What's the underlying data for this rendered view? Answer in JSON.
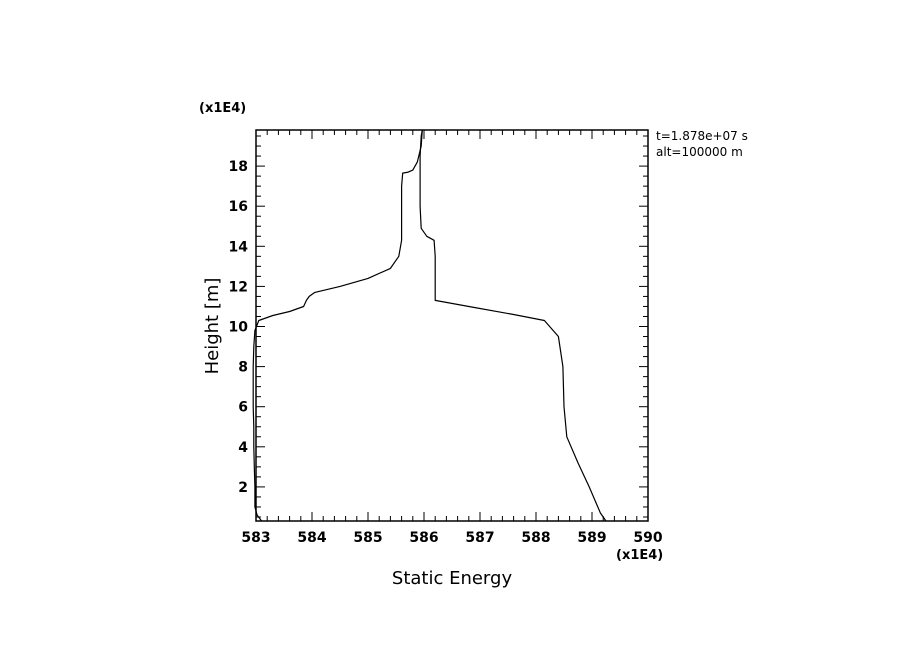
{
  "chart_data": {
    "type": "line",
    "title": "",
    "xlabel": "Static Energy",
    "ylabel": "Height [m]",
    "x_multiplier": "(x1E4)",
    "y_multiplier": "(x1E4)",
    "xlim": [
      583,
      590
    ],
    "ylim": [
      0.3,
      19.8
    ],
    "x_ticks": [
      583,
      584,
      585,
      586,
      587,
      588,
      589,
      590
    ],
    "y_ticks": [
      2,
      4,
      6,
      8,
      10,
      12,
      14,
      16,
      18
    ],
    "annotations": [
      "t=1.878e+07 s",
      "alt=100000 m"
    ],
    "grid": false,
    "series": [
      {
        "name": "",
        "points": [
          [
            583.1,
            0.3
          ],
          [
            583.02,
            0.6
          ],
          [
            582.98,
            1.0
          ],
          [
            582.98,
            2.0
          ],
          [
            582.97,
            3.0
          ],
          [
            582.96,
            4.0
          ],
          [
            582.96,
            5.0
          ],
          [
            582.95,
            6.0
          ],
          [
            582.95,
            7.0
          ],
          [
            582.95,
            8.0
          ],
          [
            582.96,
            9.0
          ],
          [
            582.98,
            9.8
          ],
          [
            583.05,
            10.3
          ],
          [
            583.3,
            10.55
          ],
          [
            583.6,
            10.75
          ],
          [
            583.85,
            11.0
          ],
          [
            583.9,
            11.3
          ],
          [
            583.95,
            11.5
          ],
          [
            584.05,
            11.7
          ],
          [
            584.5,
            12.0
          ],
          [
            585.0,
            12.4
          ],
          [
            585.4,
            12.9
          ],
          [
            585.55,
            13.5
          ],
          [
            585.6,
            14.3
          ],
          [
            585.6,
            15.5
          ],
          [
            585.6,
            17.0
          ],
          [
            585.62,
            17.65
          ],
          [
            585.72,
            17.7
          ],
          [
            585.8,
            17.8
          ],
          [
            585.88,
            18.2
          ],
          [
            585.95,
            19.0
          ],
          [
            585.97,
            19.8
          ]
        ]
      },
      {
        "name": "",
        "points": [
          [
            589.25,
            0.3
          ],
          [
            589.15,
            0.7
          ],
          [
            588.95,
            2.0
          ],
          [
            588.75,
            3.2
          ],
          [
            588.55,
            4.5
          ],
          [
            588.5,
            6.0
          ],
          [
            588.48,
            8.0
          ],
          [
            588.4,
            9.5
          ],
          [
            588.15,
            10.3
          ],
          [
            587.6,
            10.6
          ],
          [
            586.9,
            10.95
          ],
          [
            586.2,
            11.3
          ],
          [
            586.2,
            13.5
          ],
          [
            586.18,
            14.3
          ],
          [
            586.05,
            14.5
          ],
          [
            585.95,
            14.9
          ],
          [
            585.93,
            16.0
          ],
          [
            585.93,
            18.5
          ],
          [
            585.95,
            19.5
          ],
          [
            585.97,
            19.8
          ]
        ]
      }
    ]
  }
}
